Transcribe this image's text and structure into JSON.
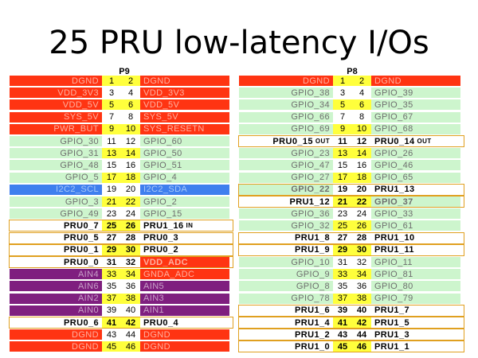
{
  "title": "25 PRU low-latency I/Os",
  "colors": {
    "power": "#ff3412",
    "gpio": "#cdf5cd",
    "i2c": "#3f7fee",
    "analog": "#7f1f7f",
    "pru": "#ffffff",
    "pin_highlight": "#ffff3c",
    "pin_plain": "#ffffff",
    "pin_on_power": "#ffff3c",
    "text_power": "#ffb0a0",
    "text_gpio": "#6e6e6e",
    "text_i2c": "#a8c8f8",
    "text_analog": "#c9a0c9",
    "text_pru": "#000000"
  },
  "p9": {
    "header": "P9",
    "rows": [
      {
        "left": "DGND",
        "pl": "1",
        "pr": "2",
        "right": "DGND",
        "lt": "power",
        "rt": "power",
        "hl": true
      },
      {
        "left": "VDD_3V3",
        "pl": "3",
        "pr": "4",
        "right": "VDD_3V3",
        "lt": "power",
        "rt": "power",
        "hl": false
      },
      {
        "left": "VDD_5V",
        "pl": "5",
        "pr": "6",
        "right": "VDD_5V",
        "lt": "power",
        "rt": "power",
        "hl": true
      },
      {
        "left": "SYS_5V",
        "pl": "7",
        "pr": "8",
        "right": "SYS_5V",
        "lt": "power",
        "rt": "power",
        "hl": false
      },
      {
        "left": "PWR_BUT",
        "pl": "9",
        "pr": "10",
        "right": "SYS_RESETN",
        "lt": "power",
        "rt": "power",
        "hl": true
      },
      {
        "left": "GPIO_30",
        "pl": "11",
        "pr": "12",
        "right": "GPIO_60",
        "lt": "gpio",
        "rt": "gpio",
        "hl": false
      },
      {
        "left": "GPIO_31",
        "pl": "13",
        "pr": "14",
        "right": "GPIO_50",
        "lt": "gpio",
        "rt": "gpio",
        "hl": true
      },
      {
        "left": "GPIO_48",
        "pl": "15",
        "pr": "16",
        "right": "GPIO_51",
        "lt": "gpio",
        "rt": "gpio",
        "hl": false
      },
      {
        "left": "GPIO_5",
        "pl": "17",
        "pr": "18",
        "right": "GPIO_4",
        "lt": "gpio",
        "rt": "gpio",
        "hl": true
      },
      {
        "left": "I2C2_SCL",
        "pl": "19",
        "pr": "20",
        "right": "I2C2_SDA",
        "lt": "i2c",
        "rt": "i2c",
        "hl": false
      },
      {
        "left": "GPIO_3",
        "pl": "21",
        "pr": "22",
        "right": "GPIO_2",
        "lt": "gpio",
        "rt": "gpio",
        "hl": true
      },
      {
        "left": "GPIO_49",
        "pl": "23",
        "pr": "24",
        "right": "GPIO_15",
        "lt": "gpio",
        "rt": "gpio",
        "hl": false
      },
      {
        "left": "PRU0_7",
        "pl": "25",
        "pr": "26",
        "right": "PRU1_16",
        "rsuf": "IN",
        "lt": "pru",
        "rt": "pru",
        "hl": true
      },
      {
        "left": "PRU0_5",
        "pl": "27",
        "pr": "28",
        "right": "PRU0_3",
        "lt": "pru",
        "rt": "pru",
        "hl": false
      },
      {
        "left": "PRU0_1",
        "pl": "29",
        "pr": "30",
        "right": "PRU0_2",
        "lt": "pru",
        "rt": "pru",
        "hl": true
      },
      {
        "left": "PRU0_0",
        "pl": "31",
        "pr": "32",
        "right": "VDD_ADC",
        "lt": "pru",
        "rt": "power",
        "hl": false
      },
      {
        "left": "AIN4",
        "pl": "33",
        "pr": "34",
        "right": "GNDA_ADC",
        "lt": "analog",
        "rt": "power",
        "hl": true
      },
      {
        "left": "AIN6",
        "pl": "35",
        "pr": "36",
        "right": "AIN5",
        "lt": "analog",
        "rt": "analog",
        "hl": false
      },
      {
        "left": "AIN2",
        "pl": "37",
        "pr": "38",
        "right": "AIN3",
        "lt": "analog",
        "rt": "analog",
        "hl": true
      },
      {
        "left": "AIN0",
        "pl": "39",
        "pr": "40",
        "right": "AIN1",
        "lt": "analog",
        "rt": "analog",
        "hl": false
      },
      {
        "left": "PRU0_6",
        "pl": "41",
        "pr": "42",
        "right": "PRU0_4",
        "lt": "pru",
        "rt": "pru",
        "hl": true
      },
      {
        "left": "DGND",
        "pl": "43",
        "pr": "44",
        "right": "DGND",
        "lt": "power",
        "rt": "power",
        "hl": false
      },
      {
        "left": "DGND",
        "pl": "45",
        "pr": "46",
        "right": "DGND",
        "lt": "power",
        "rt": "power",
        "hl": true
      }
    ]
  },
  "p8": {
    "header": "P8",
    "rows": [
      {
        "left": "DGND",
        "pl": "1",
        "pr": "2",
        "right": "DGND",
        "lt": "power",
        "rt": "power",
        "hl": true
      },
      {
        "left": "GPIO_38",
        "pl": "3",
        "pr": "4",
        "right": "GPIO_39",
        "lt": "gpio",
        "rt": "gpio",
        "hl": false
      },
      {
        "left": "GPIO_34",
        "pl": "5",
        "pr": "6",
        "right": "GPIO_35",
        "lt": "gpio",
        "rt": "gpio",
        "hl": true
      },
      {
        "left": "GPIO_66",
        "pl": "7",
        "pr": "8",
        "right": "GPIO_67",
        "lt": "gpio",
        "rt": "gpio",
        "hl": false
      },
      {
        "left": "GPIO_69",
        "pl": "9",
        "pr": "10",
        "right": "GPIO_68",
        "lt": "gpio",
        "rt": "gpio",
        "hl": true
      },
      {
        "left": "PRU0_15",
        "lsuf": "OUT",
        "pl": "11",
        "pr": "12",
        "right": "PRU0_14",
        "rsuf": "OUT",
        "lt": "pru",
        "rt": "pru",
        "hl": false
      },
      {
        "left": "GPIO_23",
        "pl": "13",
        "pr": "14",
        "right": "GPIO_26",
        "lt": "gpio",
        "rt": "gpio",
        "hl": true
      },
      {
        "left": "GPIO_47",
        "pl": "15",
        "pr": "16",
        "right": "GPIO_46",
        "lt": "gpio",
        "rt": "gpio",
        "hl": false
      },
      {
        "left": "GPIO_27",
        "pl": "17",
        "pr": "18",
        "right": "GPIO_65",
        "lt": "gpio",
        "rt": "gpio",
        "hl": true
      },
      {
        "left": "GPIO_22",
        "pl": "19",
        "pr": "20",
        "right": "PRU1_13",
        "lt": "gpio",
        "rt": "pru",
        "hl": false
      },
      {
        "left": "PRU1_12",
        "pl": "21",
        "pr": "22",
        "right": "GPIO_37",
        "lt": "pru",
        "rt": "gpio",
        "hl": true
      },
      {
        "left": "GPIO_36",
        "pl": "23",
        "pr": "24",
        "right": "GPIO_33",
        "lt": "gpio",
        "rt": "gpio",
        "hl": false
      },
      {
        "left": "GPIO_32",
        "pl": "25",
        "pr": "26",
        "right": "GPIO_61",
        "lt": "gpio",
        "rt": "gpio",
        "hl": true
      },
      {
        "left": "PRU1_8",
        "pl": "27",
        "pr": "28",
        "right": "PRU1_10",
        "lt": "pru",
        "rt": "pru",
        "hl": false
      },
      {
        "left": "PRU1_9",
        "pl": "29",
        "pr": "30",
        "right": "PRU1_11",
        "lt": "pru",
        "rt": "pru",
        "hl": true
      },
      {
        "left": "GPIO_10",
        "pl": "31",
        "pr": "32",
        "right": "GPIO_11",
        "lt": "gpio",
        "rt": "gpio",
        "hl": false
      },
      {
        "left": "GPIO_9",
        "pl": "33",
        "pr": "34",
        "right": "GPIO_81",
        "lt": "gpio",
        "rt": "gpio",
        "hl": true
      },
      {
        "left": "GPIO_8",
        "pl": "35",
        "pr": "36",
        "right": "GPIO_80",
        "lt": "gpio",
        "rt": "gpio",
        "hl": false
      },
      {
        "left": "GPIO_78",
        "pl": "37",
        "pr": "38",
        "right": "GPIO_79",
        "lt": "gpio",
        "rt": "gpio",
        "hl": true
      },
      {
        "left": "PRU1_6",
        "pl": "39",
        "pr": "40",
        "right": "PRU1_7",
        "lt": "pru",
        "rt": "pru",
        "hl": false
      },
      {
        "left": "PRU1_4",
        "pl": "41",
        "pr": "42",
        "right": "PRU1_5",
        "lt": "pru",
        "rt": "pru",
        "hl": true
      },
      {
        "left": "PRU1_2",
        "pl": "43",
        "pr": "44",
        "right": "PRU1_3",
        "lt": "pru",
        "rt": "pru",
        "hl": false
      },
      {
        "left": "PRU1_0",
        "pl": "45",
        "pr": "46",
        "right": "PRU1_1",
        "lt": "pru",
        "rt": "pru",
        "hl": true
      }
    ]
  }
}
